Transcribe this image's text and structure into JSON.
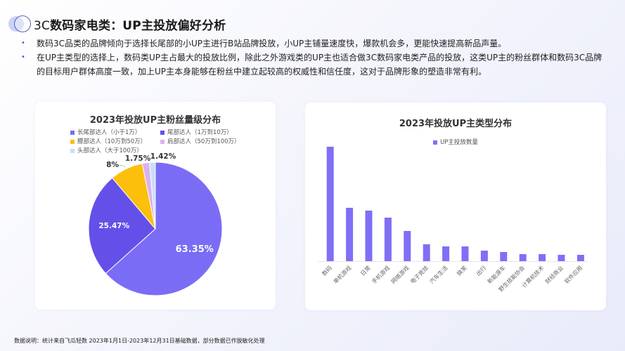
{
  "header": {
    "title_prefix": "3C",
    "title_main": "数码家电类：UP主投放偏好分析"
  },
  "bullets": [
    {
      "text": "数码3C品类的品牌倾向于选择长尾部的小UP主进行B站品牌投放，小UP主铺量速度快，爆款机会多，更能快速提高新品声量。"
    },
    {
      "text": "在UP主类型的选择上，数码类UP主占最大的投放比例，除此之外游戏类的UP主也适合做3C数码家电类产品的投放，这类UP主的粉丝群体和数码3C品牌的目标用户群体高度一致，加上UP主本身能够在粉丝中建立起较高的权威性和信任度，这对于品牌形象的塑造非常有利。"
    }
  ],
  "colors": {
    "primary": "#7b6cf6",
    "secondary": "#6450e8",
    "waist": "#fbbf0c",
    "shoulder": "#dcb0f2",
    "head": "#c8dff4",
    "bar": "#7f6ff7"
  },
  "chart_data": [
    {
      "type": "pie",
      "title": "2023年投放UP主粉丝量级分布",
      "legend_position": "top",
      "categories": [
        "长尾部达人（小于1万）",
        "尾部达人（1万到10万）",
        "腰部达人（10万到50万）",
        "肩部达人（50万到100万）",
        "头部达人（大于100万）"
      ],
      "values": [
        63.35,
        25.47,
        8,
        1.75,
        1.42
      ],
      "labels": [
        "63.35%",
        "25.47%",
        "8%",
        "1.75%",
        "1.42%"
      ],
      "colors": [
        "#7b6cf6",
        "#6450e8",
        "#fbbf0c",
        "#dcb0f2",
        "#c8dff4"
      ],
      "unit": "%"
    },
    {
      "type": "bar",
      "title": "2023年投放UP主类型分布",
      "legend_position": "top",
      "series": [
        {
          "name": "UP主投放数量",
          "values": [
            163,
            76,
            72,
            62,
            43,
            24,
            21,
            21,
            15,
            13,
            10,
            10,
            9,
            9
          ]
        }
      ],
      "categories": [
        "数码",
        "单机游戏",
        "日常",
        "手机游戏",
        "网络游戏",
        "电子竞技",
        "汽车生活",
        "搞笑",
        "出行",
        "新能源车",
        "野生技能协会",
        "计算机技术",
        "财经商业",
        "软件应用"
      ],
      "xlabel": "",
      "ylabel": "",
      "y_axis_visible": false,
      "grid": false,
      "note": "relative bar heights estimated from pixels; no y-axis ticks shown"
    }
  ],
  "footer": {
    "text": "数据说明：统计来自飞瓜轻数 2023年1月1日-2023年12月31日基础数据，部分数据已作脱敏化处理"
  }
}
